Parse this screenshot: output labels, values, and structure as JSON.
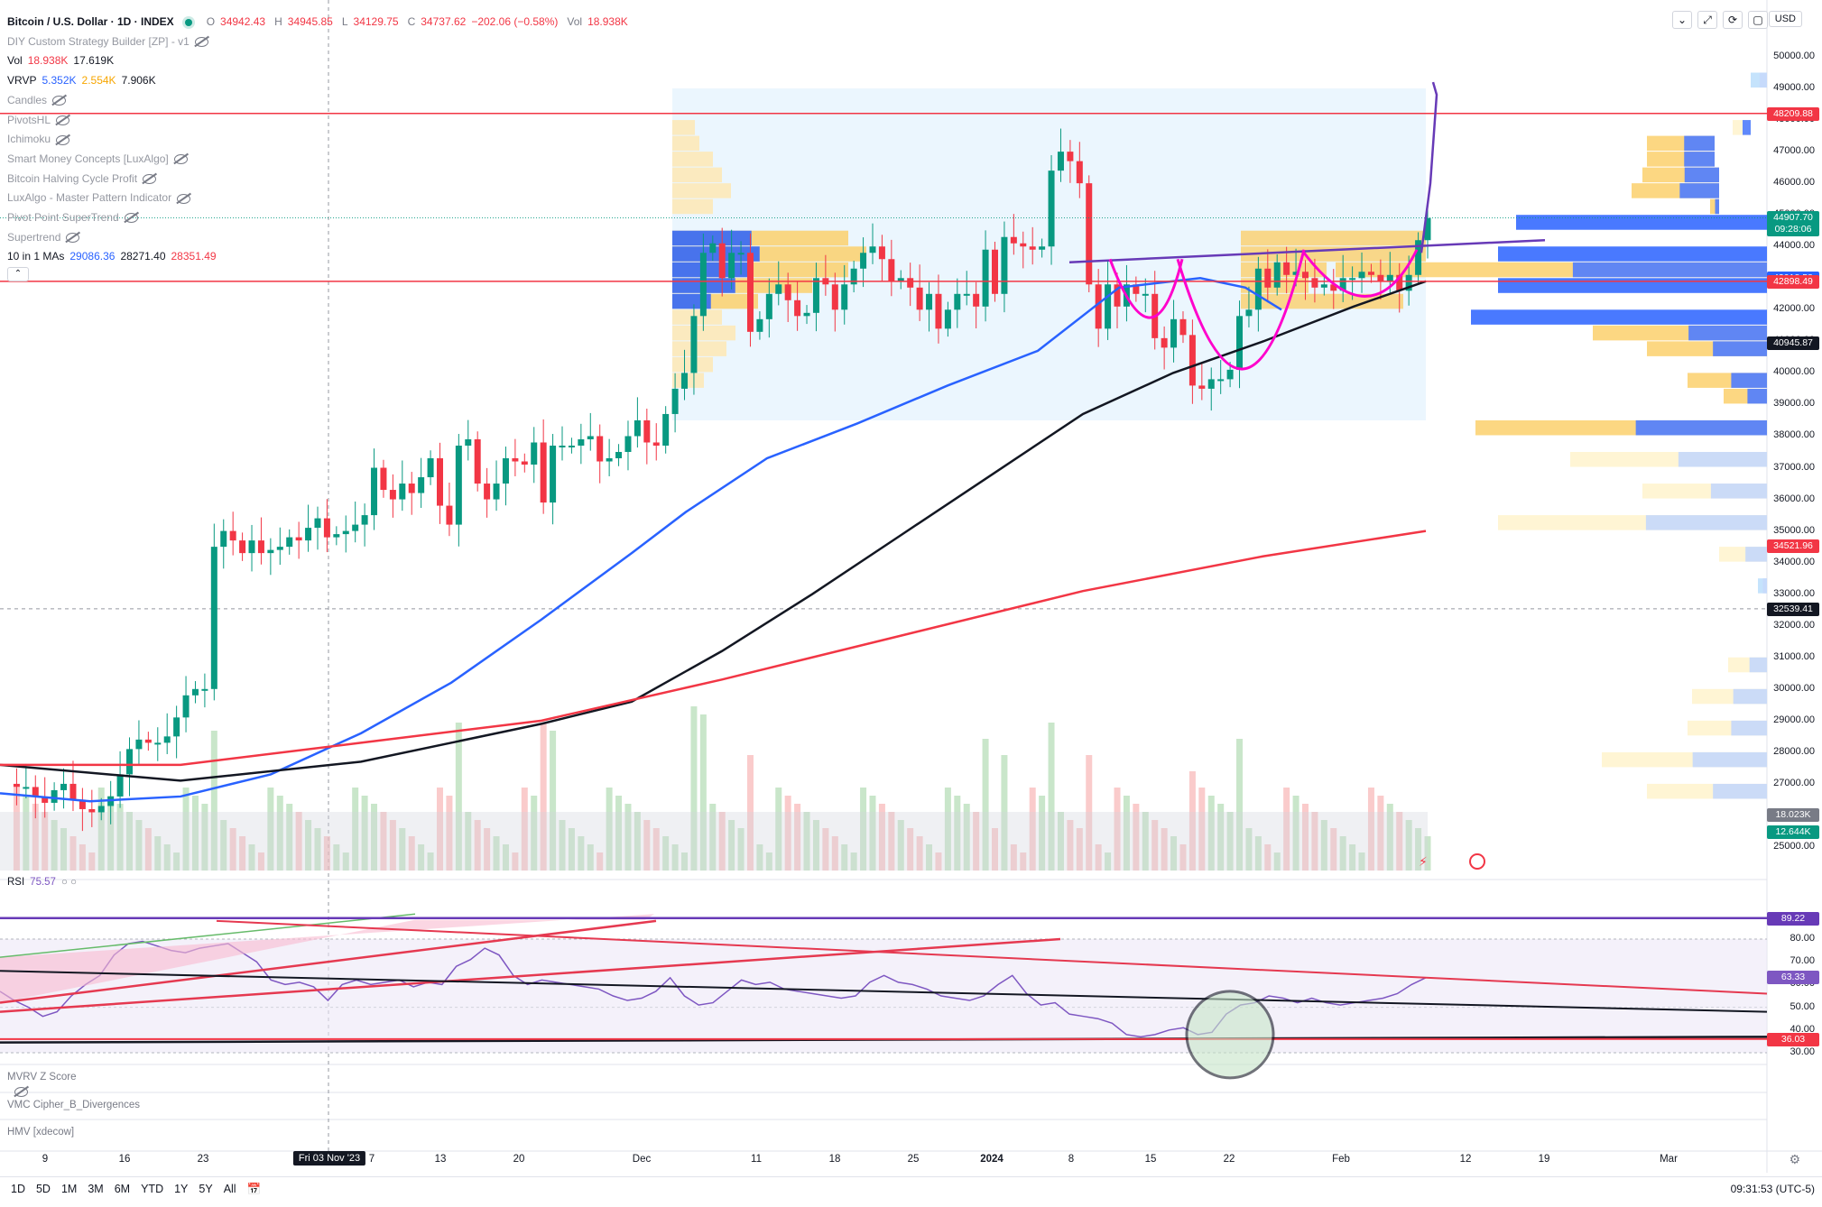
{
  "header": {
    "title": "Bitcoin / U.S. Dollar · 1D · INDEX",
    "ohlc": {
      "o_label": "O",
      "o": "34942.43",
      "h_label": "H",
      "h": "34945.85",
      "l_label": "L",
      "l": "34129.75",
      "c_label": "C",
      "c": "34737.62",
      "change": "−202.06 (−0.58%)",
      "vol_label": "Vol",
      "vol": "18.938K"
    },
    "currency": "USD"
  },
  "indicators": [
    {
      "name": "DIY Custom Strategy Builder [ZP] - v1",
      "values": []
    },
    {
      "name": "Vol",
      "values": [
        "18.938K",
        "17.619K"
      ]
    },
    {
      "name": "VRVP",
      "values": [
        "5.352K",
        "2.554K",
        "7.906K"
      ]
    },
    {
      "name": "Candles",
      "values": []
    },
    {
      "name": "PivotsHL",
      "values": []
    },
    {
      "name": "Ichimoku",
      "values": []
    },
    {
      "name": "Smart Money Concepts [LuxAlgo]",
      "values": []
    },
    {
      "name": "Bitcoin Halving Cycle Profit",
      "values": []
    },
    {
      "name": "LuxAlgo - Master Pattern Indicator",
      "values": []
    },
    {
      "name": "Pivot Point SuperTrend",
      "values": []
    },
    {
      "name": "Supertrend",
      "values": []
    },
    {
      "name": "10 in 1 MAs",
      "values": [
        "29086.36",
        "28271.40",
        "28351.49"
      ]
    }
  ],
  "price_axis": [
    "50000.00",
    "49000.00",
    "48000.00",
    "47000.00",
    "46000.00",
    "45000.00",
    "44000.00",
    "43000.00",
    "42000.00",
    "41000.00",
    "40000.00",
    "39000.00",
    "38000.00",
    "37000.00",
    "36000.00",
    "35000.00",
    "34000.00",
    "33000.00",
    "32000.00",
    "31000.00",
    "30000.00",
    "29000.00",
    "28000.00",
    "27000.00",
    "26000.00",
    "25000.00"
  ],
  "price_tags": [
    {
      "value": "48209.88",
      "color": "#f23645"
    },
    {
      "value": "44907.70",
      "sub": "09:28:06",
      "color": "#089981"
    },
    {
      "value": "43018.58",
      "color": "#2962ff"
    },
    {
      "value": "42898.49",
      "color": "#f23645"
    },
    {
      "value": "40945.87",
      "color": "#131722"
    },
    {
      "value": "34521.96",
      "color": "#f23645"
    },
    {
      "value": "32539.41",
      "color": "#131722"
    },
    {
      "value": "18.023K",
      "color": "#787b86"
    },
    {
      "value": "12.644K",
      "color": "#089981"
    }
  ],
  "rsi": {
    "label": "RSI",
    "value": "75.57",
    "axis": [
      "80.00",
      "70.00",
      "60.00",
      "50.00",
      "40.00",
      "30.00"
    ],
    "tags": [
      {
        "value": "89.22",
        "color": "#673ab7"
      },
      {
        "value": "63.33",
        "color": "#7e57c2"
      },
      {
        "value": "36.03",
        "color": "#f23645"
      }
    ]
  },
  "lower_panes": [
    "MVRV Z Score",
    "VMC Cipher_B_Divergences",
    "HMV [xdecow]"
  ],
  "time_axis": [
    {
      "label": "9",
      "x": 50
    },
    {
      "label": "16",
      "x": 138
    },
    {
      "label": "23",
      "x": 225
    },
    {
      "label": "7",
      "x": 412
    },
    {
      "label": "13",
      "x": 488
    },
    {
      "label": "20",
      "x": 575
    },
    {
      "label": "Dec",
      "x": 711
    },
    {
      "label": "11",
      "x": 838
    },
    {
      "label": "18",
      "x": 925
    },
    {
      "label": "25",
      "x": 1012
    },
    {
      "label": "2024",
      "x": 1099,
      "bold": true
    },
    {
      "label": "8",
      "x": 1187
    },
    {
      "label": "15",
      "x": 1275
    },
    {
      "label": "22",
      "x": 1362
    },
    {
      "label": "Feb",
      "x": 1486
    },
    {
      "label": "12",
      "x": 1624
    },
    {
      "label": "19",
      "x": 1711
    },
    {
      "label": "Mar",
      "x": 1849
    }
  ],
  "crosshair_date": "Fri 03 Nov '23",
  "ranges": [
    "1D",
    "5D",
    "1M",
    "3M",
    "6M",
    "YTD",
    "1Y",
    "5Y",
    "All"
  ],
  "clock": "09:31:53 (UTC-5)",
  "colors": {
    "up": "#089981",
    "down": "#f23645",
    "ma_blue": "#2962ff",
    "ma_black": "#131722",
    "ma_red": "#f23645",
    "rsi": "#7e57c2"
  }
}
